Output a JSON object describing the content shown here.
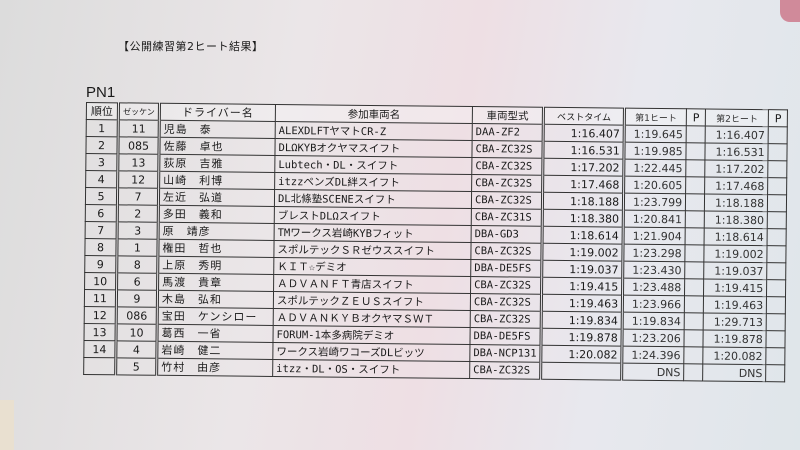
{
  "title": "【公開練習第2ヒート結果】",
  "section": "PN1",
  "headers": {
    "rank": "順位",
    "number": "ゼッケン",
    "driver": "ドライバー名",
    "car": "参加車両名",
    "type": "車両型式",
    "best": "ベストタイム",
    "heat1": "第1ヒート",
    "p1": "P",
    "heat2": "第2ヒート",
    "p2": "P"
  },
  "rows": [
    {
      "rank": "1",
      "number": "11",
      "driver": "児島　泰",
      "car": "ALEXDLFTヤマトCR-Z",
      "type": "DAA-ZF2",
      "best": "1:16.407",
      "heat1": "1:19.645",
      "p1": "",
      "heat2": "1:16.407",
      "p2": ""
    },
    {
      "rank": "2",
      "number": "085",
      "driver": "佐藤　卓也",
      "car": "DLΩKYBオクヤマスイフト",
      "type": "CBA-ZC32S",
      "best": "1:16.531",
      "heat1": "1:19.985",
      "p1": "",
      "heat2": "1:16.531",
      "p2": ""
    },
    {
      "rank": "3",
      "number": "13",
      "driver": "荻原　吉雅",
      "car": "Lubtech・DL・スイフト",
      "type": "CBA-ZC32S",
      "best": "1:17.202",
      "heat1": "1:22.445",
      "p1": "",
      "heat2": "1:17.202",
      "p2": ""
    },
    {
      "rank": "4",
      "number": "12",
      "driver": "山崎　利博",
      "car": "itzzペンズDL絆スイフト",
      "type": "CBA-ZC32S",
      "best": "1:17.468",
      "heat1": "1:20.605",
      "p1": "",
      "heat2": "1:17.468",
      "p2": ""
    },
    {
      "rank": "5",
      "number": "7",
      "driver": "左近　弘道",
      "car": "DL北條塾SCENEスイフト",
      "type": "CBA-ZC32S",
      "best": "1:18.188",
      "heat1": "1:23.799",
      "p1": "",
      "heat2": "1:18.188",
      "p2": ""
    },
    {
      "rank": "6",
      "number": "2",
      "driver": "多田　義和",
      "car": "ブレストDLΩスイフト",
      "type": "CBA-ZC31S",
      "best": "1:18.380",
      "heat1": "1:20.841",
      "p1": "",
      "heat2": "1:18.380",
      "p2": ""
    },
    {
      "rank": "7",
      "number": "3",
      "driver": "原　靖彦",
      "car": "TMワークス岩崎KYBフィット",
      "type": "DBA-GD3",
      "best": "1:18.614",
      "heat1": "1:21.904",
      "p1": "",
      "heat2": "1:18.614",
      "p2": ""
    },
    {
      "rank": "8",
      "number": "1",
      "driver": "権田　哲也",
      "car": "スポルテックＳＲゼウススイフト",
      "type": "CBA-ZC32S",
      "best": "1:19.002",
      "heat1": "1:23.298",
      "p1": "",
      "heat2": "1:19.002",
      "p2": ""
    },
    {
      "rank": "9",
      "number": "8",
      "driver": "上原　秀明",
      "car": "ＫＩＴ☆デミオ",
      "type": "DBA-DE5FS",
      "best": "1:19.037",
      "heat1": "1:23.430",
      "p1": "",
      "heat2": "1:19.037",
      "p2": ""
    },
    {
      "rank": "10",
      "number": "6",
      "driver": "馬渡　貴章",
      "car": "ＡＤＶＡＮＦＴ青店スイフト",
      "type": "CBA-ZC32S",
      "best": "1:19.415",
      "heat1": "1:23.488",
      "p1": "",
      "heat2": "1:19.415",
      "p2": ""
    },
    {
      "rank": "11",
      "number": "9",
      "driver": "木島　弘和",
      "car": "スポルテックＺＥＵＳスイフト",
      "type": "CBA-ZC32S",
      "best": "1:19.463",
      "heat1": "1:23.966",
      "p1": "",
      "heat2": "1:19.463",
      "p2": ""
    },
    {
      "rank": "12",
      "number": "086",
      "driver": "宝田　ケンシロー",
      "car": "ＡＤＶＡＮＫＹＢオクヤマＳＷＴ",
      "type": "CBA-ZC32S",
      "best": "1:19.834",
      "heat1": "1:19.834",
      "p1": "",
      "heat2": "1:29.713",
      "p2": ""
    },
    {
      "rank": "13",
      "number": "10",
      "driver": "葛西　一省",
      "car": "FORUM-1本多病院デミオ",
      "type": "DBA-DE5FS",
      "best": "1:19.878",
      "heat1": "1:23.206",
      "p1": "",
      "heat2": "1:19.878",
      "p2": ""
    },
    {
      "rank": "14",
      "number": "4",
      "driver": "岩崎　健二",
      "car": "ワークス岩崎ワコーズDLビッツ",
      "type": "DBA-NCP131",
      "best": "1:20.082",
      "heat1": "1:24.396",
      "p1": "",
      "heat2": "1:20.082",
      "p2": ""
    },
    {
      "rank": "",
      "number": "5",
      "driver": "竹村　由彦",
      "car": "itzz・DL・OS・スイフト",
      "type": "CBA-ZC32S",
      "best": "",
      "heat1": "DNS",
      "p1": "",
      "heat2": "DNS",
      "p2": ""
    }
  ]
}
